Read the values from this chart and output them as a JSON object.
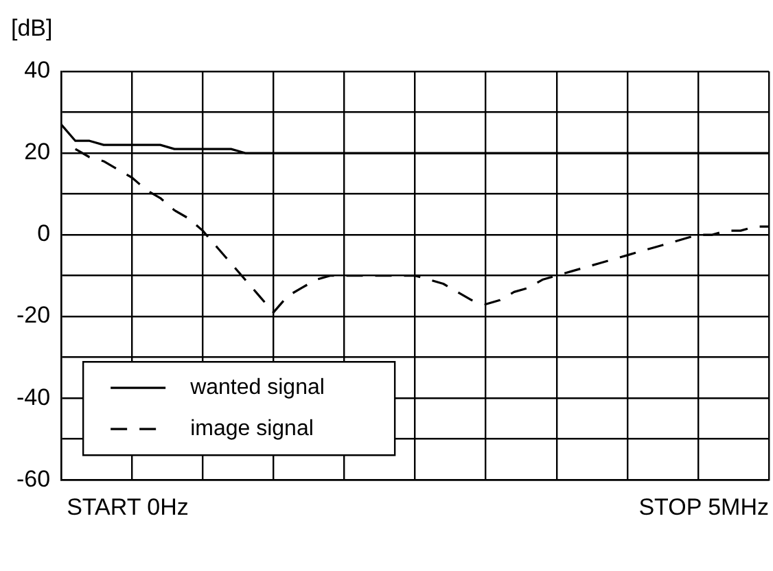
{
  "chart_data": {
    "type": "line",
    "ylabel": "[dB]",
    "ylim": [
      -60,
      40
    ],
    "categories": [
      null,
      null,
      null,
      null,
      null,
      null,
      null,
      null,
      null,
      null,
      null,
      null,
      null,
      null,
      null,
      null,
      null,
      null,
      null,
      null,
      null,
      null,
      null,
      null,
      null,
      null,
      null,
      null,
      null,
      null,
      null,
      null,
      null,
      null,
      null,
      null,
      null,
      null,
      null,
      null,
      null,
      null,
      null,
      null,
      null,
      null,
      null,
      null,
      null,
      null,
      null
    ],
    "yticks": [
      -60,
      {
        "value": -50,
        "label": null
      },
      -40,
      {
        "value": -30,
        "label": null
      },
      -20,
      {
        "value": -10,
        "label": null
      },
      0,
      {
        "value": 10,
        "label": null
      },
      20,
      {
        "value": 30,
        "label": null
      },
      40
    ],
    "grid": true,
    "legend": "bottom left",
    "marker": "none",
    "annotations": [
      "START 0Hz",
      "STOP 5MHz"
    ],
    "series": [
      {
        "name": "wanted signal",
        "color": "#000000",
        "line_style": "solid",
        "values": [
          27,
          23,
          23,
          22,
          22,
          22,
          22,
          22,
          21,
          21,
          21,
          21,
          21,
          20,
          20,
          20,
          20,
          20,
          20,
          20,
          20,
          20,
          20,
          20,
          20,
          20,
          20,
          20,
          20,
          20,
          20,
          20,
          20,
          20,
          20,
          20,
          20,
          20,
          20,
          20,
          20,
          20,
          20,
          20,
          20,
          20,
          20,
          20,
          20,
          20,
          20
        ]
      },
      {
        "name": "image signal",
        "color": "#000000",
        "line_style": "dashed",
        "values": [
          null,
          21,
          19,
          18,
          16,
          14,
          11,
          9,
          6,
          4,
          1,
          -3,
          -7,
          -11,
          -15,
          -19,
          -15,
          -13,
          -11,
          -10,
          -10,
          -10,
          -10,
          -10,
          -10,
          -10,
          -11,
          -12,
          -14,
          -16,
          -17,
          -16,
          -14,
          -13,
          -11,
          -10,
          -9,
          -8,
          -7,
          -6,
          -5,
          -4,
          -3,
          -2,
          -1,
          0,
          0,
          1,
          1,
          2,
          2
        ]
      }
    ]
  }
}
